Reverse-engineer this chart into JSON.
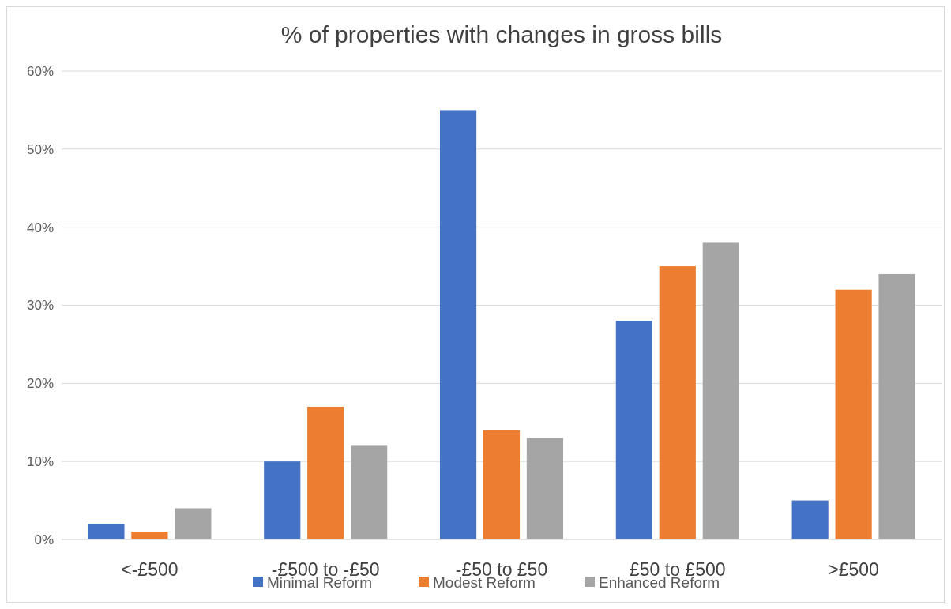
{
  "chart_data": {
    "type": "bar",
    "title": "% of properties with changes in gross bills",
    "categories": [
      "<-£500",
      "-£500 to -£50",
      "-£50 to £50",
      "£50 to £500",
      ">£500"
    ],
    "series": [
      {
        "name": "Minimal Reform",
        "color": "#4472c4",
        "values": [
          2,
          10,
          55,
          28,
          5
        ]
      },
      {
        "name": "Modest Reform",
        "color": "#ed7d31",
        "values": [
          1,
          17,
          14,
          35,
          32
        ]
      },
      {
        "name": "Enhanced Reform",
        "color": "#a5a5a5",
        "values": [
          4,
          12,
          13,
          38,
          34
        ]
      }
    ],
    "ylim": [
      0,
      60
    ],
    "yticks": [
      {
        "value": 0,
        "label": "0%"
      },
      {
        "value": 10,
        "label": "10%"
      },
      {
        "value": 20,
        "label": "20%"
      },
      {
        "value": 30,
        "label": "30%"
      },
      {
        "value": 40,
        "label": "40%"
      },
      {
        "value": 50,
        "label": "50%"
      },
      {
        "value": 60,
        "label": "60%"
      }
    ],
    "grid": "y",
    "legend": "bottom"
  }
}
